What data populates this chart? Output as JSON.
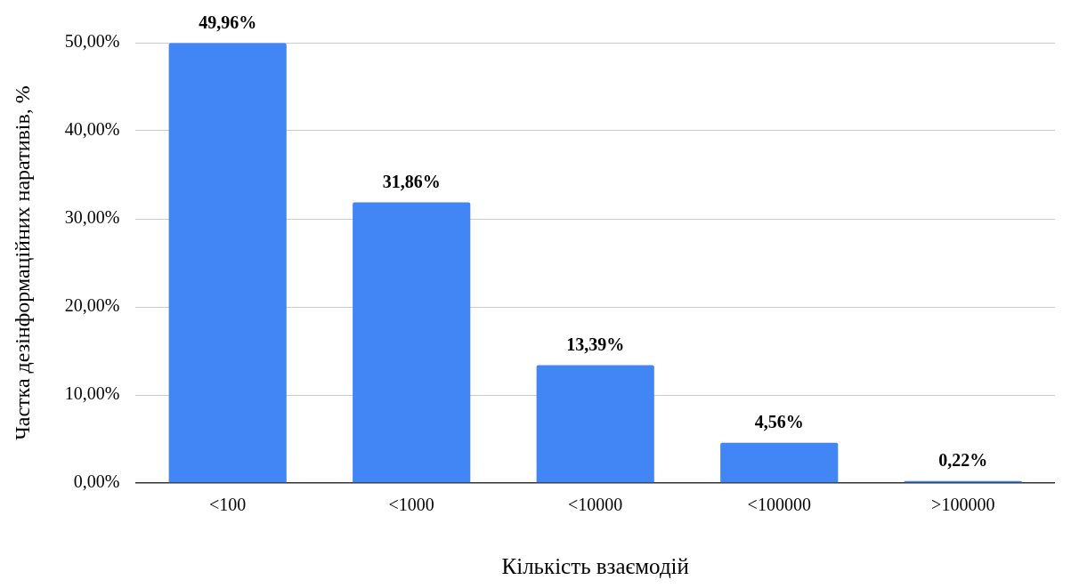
{
  "chart_data": {
    "type": "bar",
    "xlabel": "Кількість взаємодій",
    "ylabel": "Частка дезінформаційних наративів, %",
    "categories": [
      "<100",
      "<1000",
      "<10000",
      "<100000",
      ">100000"
    ],
    "values": [
      49.96,
      31.86,
      13.39,
      4.56,
      0.22
    ],
    "value_labels": [
      "49,96%",
      "31,86%",
      "13,39%",
      "4,56%",
      "0,22%"
    ],
    "color": "#4285f4",
    "ylim": [
      0,
      50
    ],
    "yticks": [
      {
        "value": 0,
        "label": "0,00%"
      },
      {
        "value": 10,
        "label": "10,00%"
      },
      {
        "value": 20,
        "label": "20,00%"
      },
      {
        "value": 30,
        "label": "30,00%"
      },
      {
        "value": 40,
        "label": "40,00%"
      },
      {
        "value": 50,
        "label": "50,00%"
      }
    ],
    "grid": "y",
    "legend": false
  }
}
